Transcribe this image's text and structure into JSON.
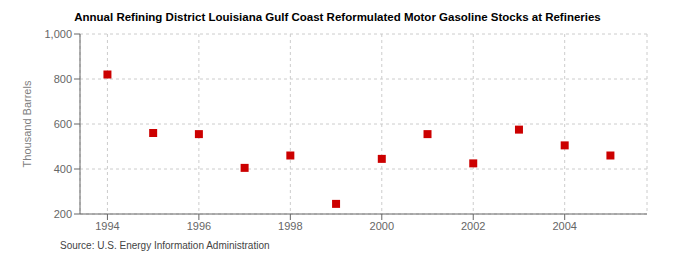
{
  "chart_data": {
    "type": "scatter",
    "title": "Annual Refining District Louisiana Gulf Coast Reformulated Motor Gasoline Stocks at Refineries",
    "ylabel": "Thousand Barrels",
    "source": "Source: U.S. Energy Information Administration",
    "x": [
      1994,
      1995,
      1996,
      1997,
      1998,
      1999,
      2000,
      2001,
      2002,
      2003,
      2004,
      2005
    ],
    "values": [
      820,
      560,
      555,
      405,
      460,
      245,
      445,
      555,
      425,
      575,
      505,
      460
    ],
    "color": "#cc0000",
    "marker": "square",
    "xlim": [
      1993.4,
      2005.8
    ],
    "xticks": [
      1994,
      1996,
      1998,
      2000,
      2002,
      2004
    ],
    "ylim": [
      200,
      1000
    ],
    "yticks": [
      200,
      400,
      600,
      800,
      {
        "value": 1000,
        "label": "1,000"
      }
    ],
    "grid": true
  }
}
